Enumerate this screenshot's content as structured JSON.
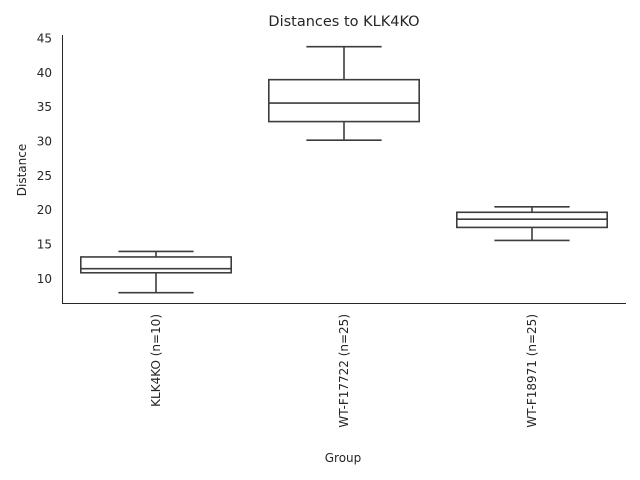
{
  "chart_data": {
    "type": "box",
    "title": "Distances to KLK4KO",
    "xlabel": "Group",
    "ylabel": "Distance",
    "ylim": [
      6.5,
      45.5
    ],
    "yticks": [
      10,
      15,
      20,
      25,
      30,
      35,
      40,
      45
    ],
    "grid": false,
    "categories": [
      "KLK4KO (n=10)",
      "WT-F17722 (n=25)",
      "WT-F18971 (n=25)"
    ],
    "boxes": [
      {
        "whislo": 8.0,
        "q1": 10.9,
        "median": 11.5,
        "q3": 13.2,
        "whishi": 14.0
      },
      {
        "whislo": 30.2,
        "q1": 32.9,
        "median": 35.6,
        "q3": 39.0,
        "whishi": 43.8
      },
      {
        "whislo": 15.6,
        "q1": 17.5,
        "median": 18.7,
        "q3": 19.7,
        "whishi": 20.5
      }
    ]
  }
}
